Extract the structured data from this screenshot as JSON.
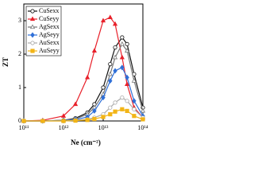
{
  "chart_data": {
    "type": "line",
    "xlabel": "Ne (cm⁻²)",
    "ylabel": "ZT",
    "xscale": "log",
    "x": [
      100000000000.0,
      300000000000.0,
      1000000000000.0,
      2000000000000.0,
      4000000000000.0,
      6000000000000.0,
      10000000000000.0,
      15000000000000.0,
      20000000000000.0,
      30000000000000.0,
      40000000000000.0,
      60000000000000.0,
      100000000000000.0
    ],
    "xlim": [
      100000000000.0,
      100000000000000.0
    ],
    "xticks": [
      {
        "value": 100000000000.0,
        "label": "10¹¹"
      },
      {
        "value": 1000000000000.0,
        "label": "10¹²"
      },
      {
        "value": 10000000000000.0,
        "label": "10¹³"
      },
      {
        "value": 100000000000000.0,
        "label": "10¹⁴"
      }
    ],
    "ylim": [
      0,
      3.5
    ],
    "yticks": [
      0,
      1,
      2,
      3
    ],
    "legend": "upper left",
    "series": [
      {
        "name": "CuSexx",
        "color": "#111111",
        "marker": "circle",
        "filled": false,
        "values": [
          0,
          0,
          0.02,
          0.08,
          0.25,
          0.5,
          1.0,
          1.7,
          2.2,
          2.5,
          2.3,
          1.4,
          0.4
        ]
      },
      {
        "name": "CuSeyy",
        "color": "#e8202a",
        "marker": "triangle",
        "filled": true,
        "values": [
          0,
          0.02,
          0.15,
          0.5,
          1.3,
          2.1,
          3.0,
          3.1,
          2.9,
          1.9,
          1.1,
          0.4,
          0.1
        ]
      },
      {
        "name": "AgSexx",
        "color": "#777777",
        "marker": "triangle",
        "filled": false,
        "values": [
          0,
          0,
          0.02,
          0.06,
          0.2,
          0.4,
          0.8,
          1.4,
          1.9,
          2.3,
          2.1,
          1.2,
          0.3
        ]
      },
      {
        "name": "AgSeyy",
        "color": "#2e6fd8",
        "marker": "diamond",
        "filled": true,
        "values": [
          0,
          0,
          0.01,
          0.04,
          0.12,
          0.3,
          0.7,
          1.2,
          1.5,
          1.6,
          1.3,
          0.6,
          0.15
        ]
      },
      {
        "name": "AuSexx",
        "color": "#aaaaaa",
        "marker": "circle",
        "filled": false,
        "values": [
          0,
          0,
          0,
          0.02,
          0.05,
          0.1,
          0.2,
          0.4,
          0.55,
          0.7,
          0.6,
          0.35,
          0.1
        ]
      },
      {
        "name": "AuSeyy",
        "color": "#f2b517",
        "marker": "square",
        "filled": true,
        "values": [
          0,
          0,
          0,
          0.01,
          0.03,
          0.06,
          0.12,
          0.2,
          0.28,
          0.35,
          0.3,
          0.15,
          0.05
        ]
      }
    ]
  }
}
